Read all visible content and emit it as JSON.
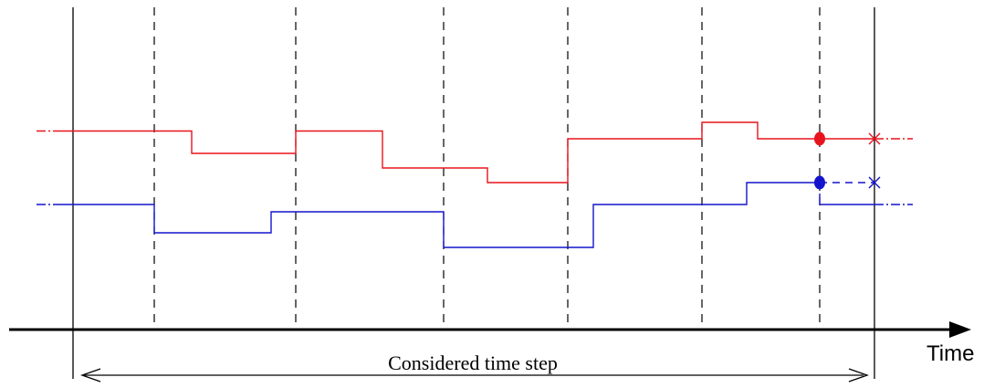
{
  "diagram": {
    "time_axis_label": "Time",
    "considered_step_label": "Considered time step",
    "colors": {
      "red_signal": "#e8141c",
      "blue_signal": "#1414cc",
      "axis": "#000000",
      "divider": "#000000"
    },
    "markers": {
      "red_marker_icon": "filled-circle",
      "blue_marker_icon": "filled-circle",
      "red_end_icon": "x-mark",
      "blue_end_icon": "x-mark"
    }
  }
}
